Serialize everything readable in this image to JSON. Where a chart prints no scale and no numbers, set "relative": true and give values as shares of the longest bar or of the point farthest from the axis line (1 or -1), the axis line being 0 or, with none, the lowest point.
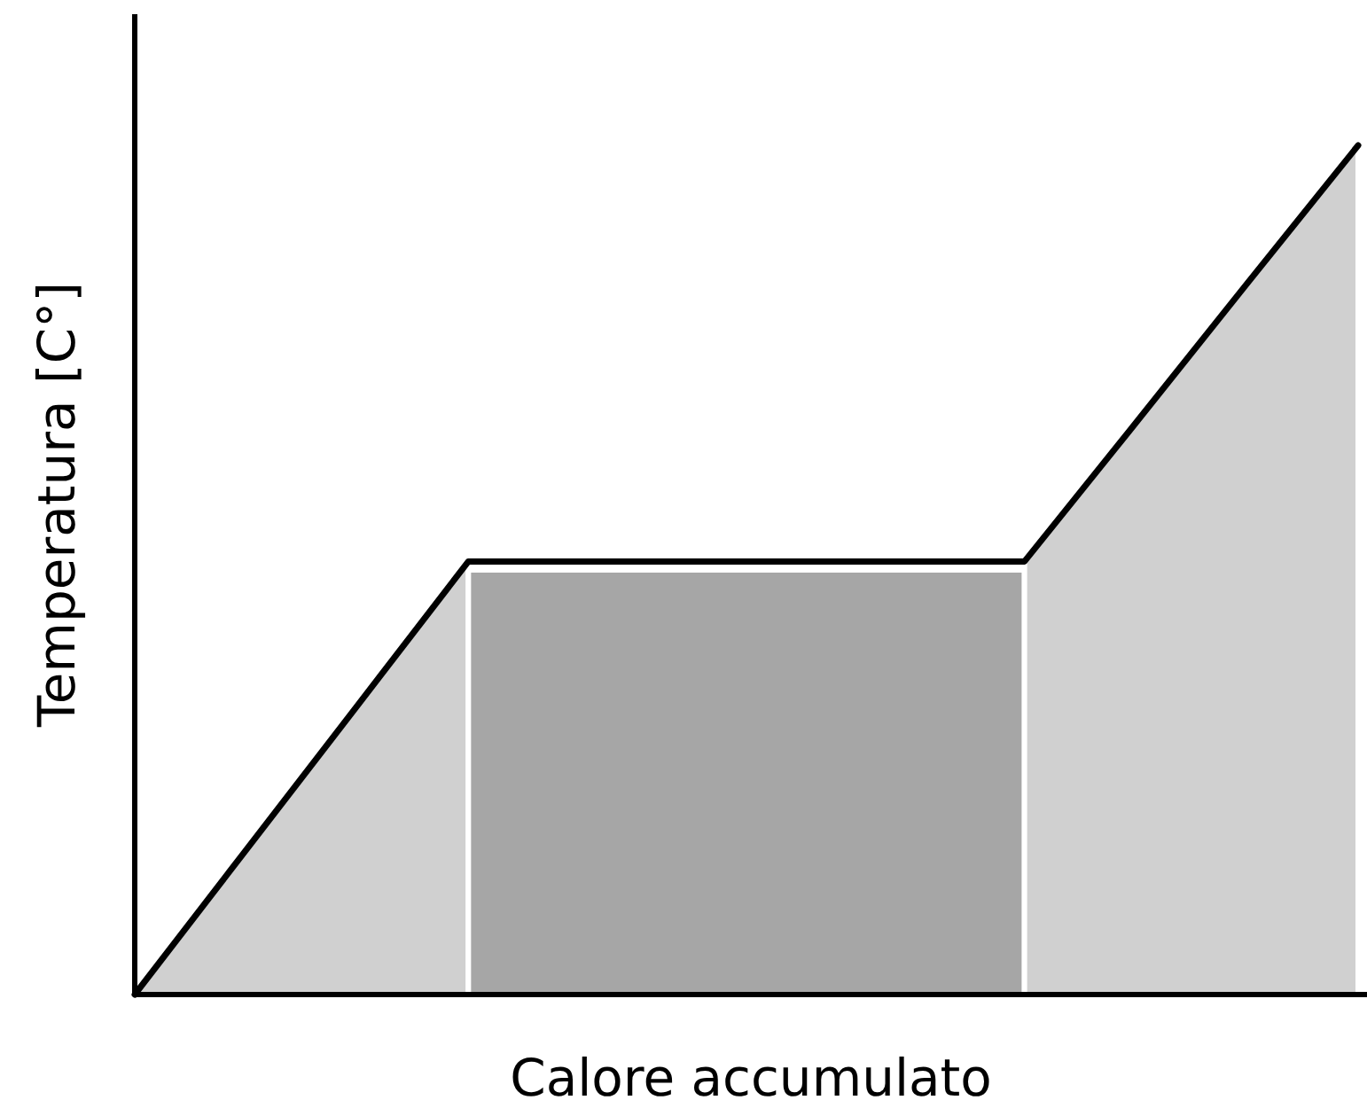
{
  "chart_data": {
    "type": "line",
    "relative": true,
    "xlabel": "Calore accumulato",
    "ylabel": "Temperatura [C°]",
    "categories": [
      null,
      null,
      null,
      null,
      null,
      null,
      null,
      null,
      null,
      null,
      null,
      null
    ],
    "series": [
      {
        "type": "area",
        "color": "#d0d0d0",
        "values": [
          0,
          0.17,
          0.34,
          0.51,
          null,
          null,
          null,
          null,
          null,
          null,
          null,
          null
        ]
      },
      {
        "type": "area",
        "color": "#a6a6a6",
        "values": [
          null,
          null,
          null,
          0.5,
          0.5,
          0.5,
          0.5,
          0.5,
          0.5,
          null,
          null,
          null
        ]
      },
      {
        "type": "area",
        "color": "#d0d0d0",
        "values": [
          null,
          null,
          null,
          null,
          null,
          null,
          null,
          null,
          0.51,
          0.673,
          0.837,
          1
        ]
      },
      {
        "color": "#000000",
        "values": [
          0,
          0.17,
          0.34,
          0.51,
          0.51,
          0.51,
          0.51,
          0.51,
          0.51,
          0.673,
          0.837,
          1
        ]
      }
    ]
  }
}
